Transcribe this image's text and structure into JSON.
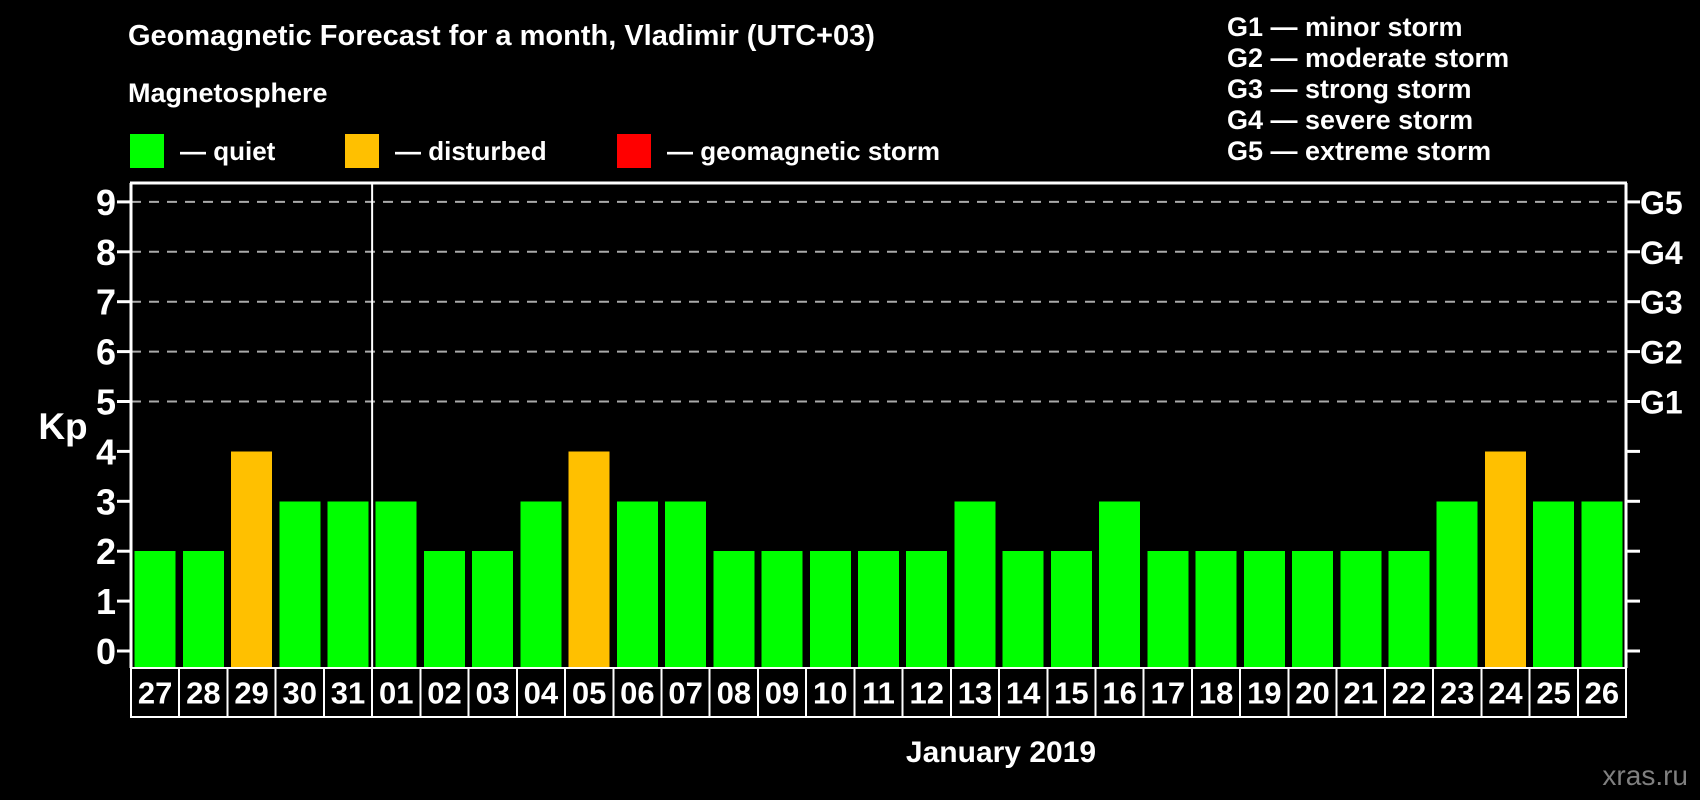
{
  "title": "Geomagnetic Forecast for a month, Vladimir (UTC+03)",
  "subtitle": "Magnetosphere",
  "legend": [
    {
      "label": "— quiet",
      "status": "quiet",
      "color": "#00ff00"
    },
    {
      "label": "— disturbed",
      "status": "disturbed",
      "color": "#ffc000"
    },
    {
      "label": "— geomagnetic storm",
      "status": "storm",
      "color": "#ff0000"
    }
  ],
  "g_legend": [
    "G1 — minor storm",
    "G2 — moderate storm",
    "G3 — strong storm",
    "G4 — severe storm",
    "G5 — extreme storm"
  ],
  "colors": {
    "quiet": "#00ff00",
    "disturbed": "#ffc000",
    "storm": "#ff0000",
    "grid": "#aaaaaa",
    "axis": "#ffffff",
    "text": "#ffffff",
    "watermark": "#808080",
    "background": "#000000"
  },
  "chart_data": {
    "type": "bar",
    "title": "Geomagnetic Forecast for a month, Vladimir (UTC+03)",
    "xlabel": "January 2019",
    "ylabel": "Kp",
    "ylim": [
      0,
      9
    ],
    "yticks": [
      0,
      1,
      2,
      3,
      4,
      5,
      6,
      7,
      8,
      9
    ],
    "gridlines_kp": [
      5,
      6,
      7,
      8,
      9
    ],
    "grid": "dashed",
    "legend_position": "top",
    "categories": [
      "27",
      "28",
      "29",
      "30",
      "31",
      "01",
      "02",
      "03",
      "04",
      "05",
      "06",
      "07",
      "08",
      "09",
      "10",
      "11",
      "12",
      "13",
      "14",
      "15",
      "16",
      "17",
      "18",
      "19",
      "20",
      "21",
      "22",
      "23",
      "24",
      "25",
      "26"
    ],
    "values": [
      2,
      2,
      4,
      3,
      3,
      3,
      2,
      2,
      3,
      4,
      3,
      3,
      2,
      2,
      2,
      2,
      2,
      3,
      2,
      2,
      3,
      2,
      2,
      2,
      2,
      2,
      2,
      3,
      4,
      3,
      3
    ],
    "statuses": [
      "quiet",
      "quiet",
      "disturbed",
      "quiet",
      "quiet",
      "quiet",
      "quiet",
      "quiet",
      "quiet",
      "disturbed",
      "quiet",
      "quiet",
      "quiet",
      "quiet",
      "quiet",
      "quiet",
      "quiet",
      "quiet",
      "quiet",
      "quiet",
      "quiet",
      "quiet",
      "quiet",
      "quiet",
      "quiet",
      "quiet",
      "quiet",
      "quiet",
      "disturbed",
      "quiet",
      "quiet"
    ],
    "month_divider_after_index": 5,
    "right_axis_labels": [
      {
        "kp": 5,
        "label": "G1"
      },
      {
        "kp": 6,
        "label": "G2"
      },
      {
        "kp": 7,
        "label": "G3"
      },
      {
        "kp": 8,
        "label": "G4"
      },
      {
        "kp": 9,
        "label": "G5"
      }
    ]
  },
  "watermark": "xras.ru"
}
